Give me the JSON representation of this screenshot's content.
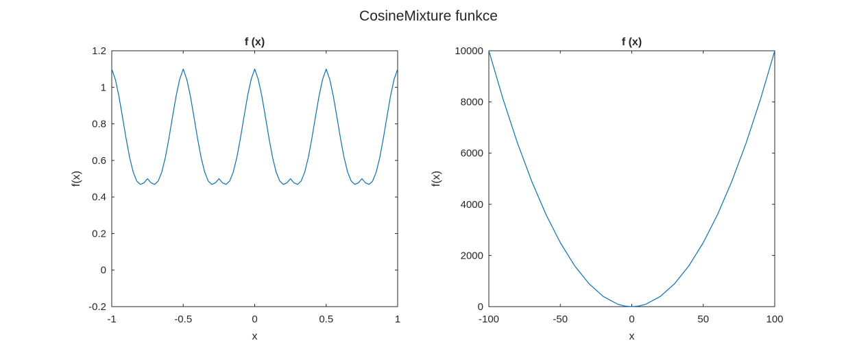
{
  "figure": {
    "title": "CosineMixture funkce"
  },
  "chart_data": [
    {
      "type": "line",
      "title": "f (x)",
      "xlabel": "x",
      "ylabel": "f(x)",
      "xlim": [
        -1,
        1
      ],
      "ylim": [
        -0.2,
        1.2
      ],
      "xticks": [
        -1,
        -0.5,
        0,
        0.5,
        1
      ],
      "xtick_labels": [
        "-1",
        "-0.5",
        "0",
        "0.5",
        "1"
      ],
      "yticks": [
        -0.2,
        0,
        0.2,
        0.4,
        0.6,
        0.8,
        1,
        1.2
      ],
      "ytick_labels": [
        "-0.2",
        "0",
        "0.2",
        "0.4",
        "0.6",
        "0.8",
        "1",
        "1.2"
      ],
      "grid": false,
      "series": [
        {
          "color": "#0072bd",
          "x": [
            -1,
            -0.975,
            -0.95,
            -0.925,
            -0.9,
            -0.875,
            -0.85,
            -0.825,
            -0.8,
            -0.775,
            -0.75,
            -0.725,
            -0.7,
            -0.675,
            -0.65,
            -0.625,
            -0.6,
            -0.575,
            -0.55,
            -0.525,
            -0.5,
            -0.475,
            -0.45,
            -0.425,
            -0.4,
            -0.375,
            -0.35,
            -0.325,
            -0.3,
            -0.275,
            -0.25,
            -0.225,
            -0.2,
            -0.175,
            -0.15,
            -0.125,
            -0.1,
            -0.075,
            -0.05,
            -0.025,
            0,
            0.025,
            0.05,
            0.075,
            0.1,
            0.125,
            0.15,
            0.175,
            0.2,
            0.225,
            0.25,
            0.275,
            0.3,
            0.325,
            0.35,
            0.375,
            0.4,
            0.425,
            0.45,
            0.475,
            0.5,
            0.525,
            0.55,
            0.575,
            0.6,
            0.625,
            0.65,
            0.675,
            0.7,
            0.725,
            0.75,
            0.775,
            0.8,
            0.825,
            0.85,
            0.875,
            0.9,
            0.925,
            0.95,
            0.975,
            1
          ],
          "y": [
            1.1,
            1.0437,
            0.9517,
            0.8384,
            0.7212,
            0.6165,
            0.5364,
            0.4871,
            0.469,
            0.4771,
            0.5,
            0.4771,
            0.469,
            0.4871,
            0.5364,
            0.6165,
            0.7212,
            0.8384,
            0.9517,
            1.0437,
            1.1,
            1.0437,
            0.9517,
            0.8384,
            0.7212,
            0.6165,
            0.5364,
            0.4871,
            0.469,
            0.4771,
            0.5,
            0.4771,
            0.469,
            0.4871,
            0.5364,
            0.6165,
            0.7212,
            0.8384,
            0.9517,
            1.0437,
            1.1,
            1.0437,
            0.9517,
            0.8384,
            0.7212,
            0.6165,
            0.5364,
            0.4871,
            0.469,
            0.4771,
            0.5,
            0.4771,
            0.469,
            0.4871,
            0.5364,
            0.6165,
            0.7212,
            0.8384,
            0.9517,
            1.0437,
            1.1,
            1.0437,
            0.9517,
            0.8384,
            0.7212,
            0.6165,
            0.5364,
            0.4871,
            0.469,
            0.4771,
            0.5,
            0.4771,
            0.469,
            0.4871,
            0.5364,
            0.6165,
            0.7212,
            0.8384,
            0.9517,
            1.0437,
            1.1
          ]
        }
      ]
    },
    {
      "type": "line",
      "title": "f (x)",
      "xlabel": "x",
      "ylabel": "f(x)",
      "xlim": [
        -100,
        100
      ],
      "ylim": [
        0,
        10000
      ],
      "xticks": [
        -100,
        -50,
        0,
        50,
        100
      ],
      "xtick_labels": [
        "-100",
        "-50",
        "0",
        "50",
        "100"
      ],
      "yticks": [
        0,
        2000,
        4000,
        6000,
        8000,
        10000
      ],
      "ytick_labels": [
        "0",
        "2000",
        "4000",
        "6000",
        "8000",
        "10000"
      ],
      "grid": false,
      "series": [
        {
          "color": "#0072bd",
          "x": [
            -100,
            -90,
            -80,
            -70,
            -60,
            -50,
            -40,
            -30,
            -20,
            -10,
            -5,
            0,
            5,
            10,
            20,
            30,
            40,
            50,
            60,
            70,
            80,
            90,
            100
          ],
          "y": [
            10000,
            8100,
            6400,
            4900,
            3600,
            2500,
            1600,
            900,
            400,
            100,
            25,
            0,
            25,
            100,
            400,
            900,
            1600,
            2500,
            3600,
            4900,
            6400,
            8100,
            10000
          ]
        }
      ]
    }
  ]
}
